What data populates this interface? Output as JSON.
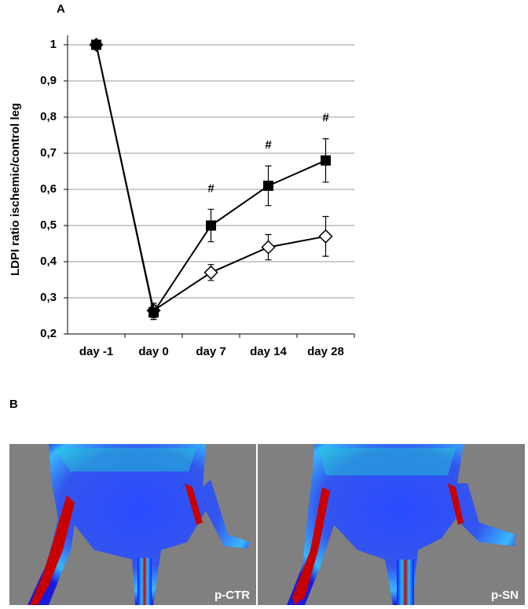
{
  "panel_labels": [
    "A",
    "B"
  ],
  "chart_data": {
    "type": "line",
    "y_label": "LDPI ratio ischemic/control leg",
    "categories": [
      "day -1",
      "day 0",
      "day 7",
      "day 14",
      "day 28"
    ],
    "ylim": [
      0.2,
      1.0
    ],
    "yticks": [
      {
        "value": 0.2,
        "label": "0,2"
      },
      {
        "value": 0.3,
        "label": "0,3"
      },
      {
        "value": 0.4,
        "label": "0,4"
      },
      {
        "value": 0.5,
        "label": "0,5"
      },
      {
        "value": 0.6,
        "label": "0,6"
      },
      {
        "value": 0.7,
        "label": "0,7"
      },
      {
        "value": 0.8,
        "label": "0,8"
      },
      {
        "value": 0.9,
        "label": "0,9"
      },
      {
        "value": 1.0,
        "label": "1"
      }
    ],
    "grid": true,
    "series": [
      {
        "marker": "diamond-open",
        "color": "#000000",
        "values": [
          1.0,
          0.265,
          0.37,
          0.44,
          0.47
        ],
        "errors": [
          0,
          0.02,
          0.022,
          0.035,
          0.055
        ]
      },
      {
        "marker": "square-filled",
        "color": "#000000",
        "values": [
          1.0,
          0.26,
          0.5,
          0.61,
          0.68
        ],
        "errors": [
          0,
          0.02,
          0.045,
          0.055,
          0.06
        ],
        "annotations": [
          null,
          null,
          "#",
          "#",
          "#"
        ]
      }
    ]
  },
  "images": [
    {
      "label": "p-CTR"
    },
    {
      "label": "p-SN"
    }
  ]
}
